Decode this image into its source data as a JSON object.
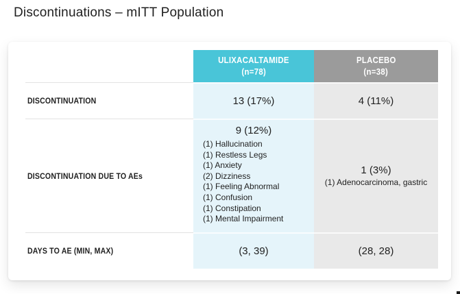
{
  "header": {
    "title": "Discontinuations – mITT Population"
  },
  "table": {
    "column_headers": [
      {
        "name": "ULIXACALTAMIDE",
        "n": "(n=78)"
      },
      {
        "name": "PLACEBO",
        "n": "(n=38)"
      }
    ],
    "rows": {
      "discontinuation": {
        "label": "DISCONTINUATION",
        "ulixacaltamide": "13 (17%)",
        "placebo": "4 (11%)"
      },
      "discontinuation_due_to_aes": {
        "label": "DISCONTINUATION DUE TO AEs",
        "ulixacaltamide": {
          "value": "9 (12%)",
          "events": [
            "(1) Hallucination",
            "(1) Restless Legs",
            "(1) Anxiety",
            "(2) Dizziness",
            "(1) Feeling Abnormal",
            "(1) Confusion",
            "(1) Constipation",
            "(1) Mental Impairment"
          ]
        },
        "placebo": {
          "value": "1 (3%)",
          "events": [
            "(1) Adenocarcinoma, gastric"
          ]
        }
      },
      "days_to_ae": {
        "label": "DAYS TO AE (MIN, MAX)",
        "ulixacaltamide": "(3, 39)",
        "placebo": "(28, 28)"
      }
    }
  },
  "colors": {
    "ulixacaltamide_header_bg": "#49C5D8",
    "placebo_header_bg": "#9B9B9B",
    "ulixacaltamide_cell_bg": "#E5F4FA",
    "placebo_cell_bg": "#E9E9E9",
    "divider": "#E2E2E2",
    "text": "#212121"
  }
}
